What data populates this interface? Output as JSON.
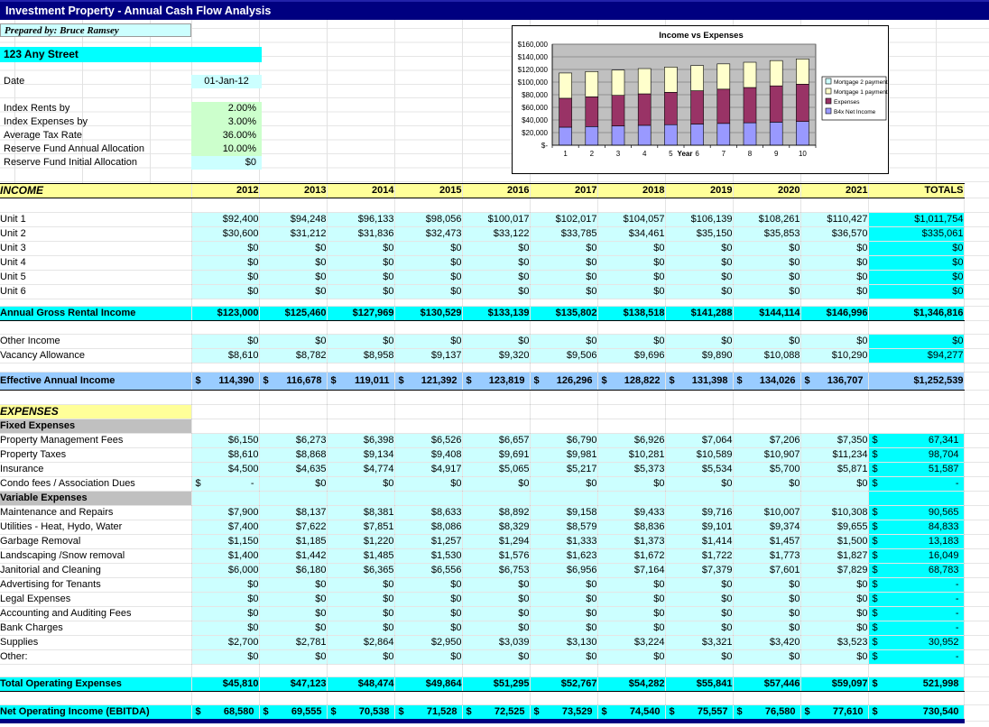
{
  "title": "Investment Property - Annual Cash Flow Analysis",
  "header": {
    "prepared_by": "Prepared by: Bruce Ramsey",
    "address": "123 Any Street",
    "fields": [
      {
        "label": "Date",
        "value": "01-Jan-12",
        "style": "cyan center"
      },
      {
        "label": "Index Rents by",
        "value": "2.00%",
        "style": "green"
      },
      {
        "label": "Index Expenses by",
        "value": "3.00%",
        "style": "green"
      },
      {
        "label": "Average Tax Rate",
        "value": "36.00%",
        "style": "green"
      },
      {
        "label": "Reserve Fund Annual Allocation",
        "value": "10.00%",
        "style": "green"
      },
      {
        "label": "Reserve Fund Initial Allocation",
        "value": "$0",
        "style": "cyan"
      }
    ]
  },
  "chart_data": {
    "type": "bar",
    "stacked": true,
    "title": "Income vs Expenses",
    "x": [
      1,
      2,
      3,
      4,
      5,
      6,
      7,
      8,
      9,
      10
    ],
    "xlabel": "Year",
    "ylim": [
      0,
      160000
    ],
    "ytick_step": 20000,
    "ytick_labels": [
      "$-",
      "$20,000",
      "$40,000",
      "$60,000",
      "$80,000",
      "$100,000",
      "$120,000",
      "$140,000",
      "$160,000"
    ],
    "plot_bg": "#C0C0C0",
    "legend_position": "right",
    "series": [
      {
        "name": "B4x Net Income",
        "color": "#9999FF",
        "values": [
          28580,
          29555,
          30538,
          31528,
          32525,
          33529,
          34540,
          35557,
          36580,
          37610
        ]
      },
      {
        "name": "Expenses",
        "color": "#993366",
        "values": [
          45810,
          47123,
          48474,
          49864,
          51295,
          52767,
          54282,
          55841,
          57446,
          59097
        ]
      },
      {
        "name": "Mortgage 1 payments",
        "color": "#FFFFCC",
        "values": [
          40000,
          40000,
          40000,
          40000,
          40000,
          40000,
          40000,
          40000,
          40000,
          40000
        ]
      },
      {
        "name": "Mortgage 2 payments",
        "color": "#CCFFFF",
        "values": [
          0,
          0,
          0,
          0,
          0,
          0,
          0,
          0,
          0,
          0
        ]
      }
    ]
  },
  "table": {
    "income_label": "INCOME",
    "totals_label": "TOTALS",
    "years": [
      "2012",
      "2013",
      "2014",
      "2015",
      "2016",
      "2017",
      "2018",
      "2019",
      "2020",
      "2021"
    ],
    "rows": [
      {
        "t": "yh"
      },
      {
        "t": "sp",
        "s": 1
      },
      {
        "t": "d",
        "label": "Unit 1",
        "values": [
          "$92,400",
          "$94,248",
          "$96,133",
          "$98,056",
          "$100,017",
          "$102,017",
          "$104,057",
          "$106,139",
          "$108,261",
          "$110,427"
        ],
        "total": "$1,011,754"
      },
      {
        "t": "d",
        "label": "Unit 2",
        "values": [
          "$30,600",
          "$31,212",
          "$31,836",
          "$32,473",
          "$33,122",
          "$33,785",
          "$34,461",
          "$35,150",
          "$35,853",
          "$36,570"
        ],
        "total": "$335,061"
      },
      {
        "t": "d",
        "label": "Unit 3",
        "values": [
          "$0",
          "$0",
          "$0",
          "$0",
          "$0",
          "$0",
          "$0",
          "$0",
          "$0",
          "$0"
        ],
        "total": "$0"
      },
      {
        "t": "d",
        "label": "Unit 4",
        "values": [
          "$0",
          "$0",
          "$0",
          "$0",
          "$0",
          "$0",
          "$0",
          "$0",
          "$0",
          "$0"
        ],
        "total": "$0"
      },
      {
        "t": "d",
        "label": "Unit 5",
        "values": [
          "$0",
          "$0",
          "$0",
          "$0",
          "$0",
          "$0",
          "$0",
          "$0",
          "$0",
          "$0"
        ],
        "total": "$0"
      },
      {
        "t": "d",
        "label": "Unit 6",
        "values": [
          "$0",
          "$0",
          "$0",
          "$0",
          "$0",
          "$0",
          "$0",
          "$0",
          "$0",
          "$0"
        ],
        "total": "$0"
      },
      {
        "t": "sp",
        "s": 2
      },
      {
        "t": "cy",
        "label": "Annual Gross Rental Income",
        "values": [
          "$123,000",
          "$125,460",
          "$127,969",
          "$130,529",
          "$133,139",
          "$135,802",
          "$138,518",
          "$141,288",
          "$144,114",
          "$146,996"
        ],
        "total": "$1,346,816"
      },
      {
        "t": "sp",
        "s": 5
      },
      {
        "t": "d",
        "label": "Other Income",
        "values": [
          "$0",
          "$0",
          "$0",
          "$0",
          "$0",
          "$0",
          "$0",
          "$0",
          "$0",
          "$0"
        ],
        "total": "$0"
      },
      {
        "t": "d",
        "label": "Vacancy Allowance",
        "values": [
          "$8,610",
          "$8,782",
          "$8,958",
          "$9,137",
          "$9,320",
          "$9,506",
          "$9,696",
          "$9,890",
          "$10,088",
          "$10,290"
        ],
        "total": "$94,277"
      },
      {
        "t": "sp",
        "s": 3
      },
      {
        "t": "bl",
        "label": "Effective Annual Income",
        "values": [
          "114,390",
          "116,678",
          "119,011",
          "121,392",
          "123,819",
          "126,296",
          "128,822",
          "131,398",
          "134,026",
          "136,707"
        ],
        "total": "$1,252,539"
      },
      {
        "t": "sp",
        "s": 1
      },
      {
        "t": "sec",
        "label": "EXPENSES"
      },
      {
        "t": "sub",
        "label": "Fixed Expenses",
        "fill": false
      },
      {
        "t": "d",
        "label": "Property Management Fees",
        "values": [
          "$6,150",
          "$6,273",
          "$6,398",
          "$6,526",
          "$6,657",
          "$6,790",
          "$6,926",
          "$7,064",
          "$7,206",
          "$7,350"
        ],
        "total": {
          "d": "$",
          "v": "67,341"
        }
      },
      {
        "t": "d",
        "label": "Property Taxes",
        "values": [
          "$8,610",
          "$8,868",
          "$9,134",
          "$9,408",
          "$9,691",
          "$9,981",
          "$10,281",
          "$10,589",
          "$10,907",
          "$11,234"
        ],
        "total": {
          "d": "$",
          "v": "98,704"
        }
      },
      {
        "t": "d",
        "label": "Insurance",
        "values": [
          "$4,500",
          "$4,635",
          "$4,774",
          "$4,917",
          "$5,065",
          "$5,217",
          "$5,373",
          "$5,534",
          "$5,700",
          "$5,871"
        ],
        "total": {
          "d": "$",
          "v": "51,587"
        }
      },
      {
        "t": "d",
        "label": "Condo fees / Association Dues",
        "values": [
          {
            "d": "$",
            "v": "-"
          },
          "$0",
          "$0",
          "$0",
          "$0",
          "$0",
          "$0",
          "$0",
          "$0",
          "$0"
        ],
        "total": {
          "d": "$",
          "v": "-"
        }
      },
      {
        "t": "sub",
        "label": "Variable Expenses",
        "fill": true
      },
      {
        "t": "d",
        "label": "Maintenance and Repairs",
        "values": [
          "$7,900",
          "$8,137",
          "$8,381",
          "$8,633",
          "$8,892",
          "$9,158",
          "$9,433",
          "$9,716",
          "$10,007",
          "$10,308"
        ],
        "total": {
          "d": "$",
          "v": "90,565"
        }
      },
      {
        "t": "d",
        "label": "Utilities - Heat, Hydo, Water",
        "values": [
          "$7,400",
          "$7,622",
          "$7,851",
          "$8,086",
          "$8,329",
          "$8,579",
          "$8,836",
          "$9,101",
          "$9,374",
          "$9,655"
        ],
        "total": {
          "d": "$",
          "v": "84,833"
        }
      },
      {
        "t": "d",
        "label": "Garbage Removal",
        "values": [
          "$1,150",
          "$1,185",
          "$1,220",
          "$1,257",
          "$1,294",
          "$1,333",
          "$1,373",
          "$1,414",
          "$1,457",
          "$1,500"
        ],
        "total": {
          "d": "$",
          "v": "13,183"
        }
      },
      {
        "t": "d",
        "label": "Landscaping /Snow removal",
        "values": [
          "$1,400",
          "$1,442",
          "$1,485",
          "$1,530",
          "$1,576",
          "$1,623",
          "$1,672",
          "$1,722",
          "$1,773",
          "$1,827"
        ],
        "total": {
          "d": "$",
          "v": "16,049"
        }
      },
      {
        "t": "d",
        "label": "Janitorial and Cleaning",
        "values": [
          "$6,000",
          "$6,180",
          "$6,365",
          "$6,556",
          "$6,753",
          "$6,956",
          "$7,164",
          "$7,379",
          "$7,601",
          "$7,829"
        ],
        "total": {
          "d": "$",
          "v": "68,783"
        }
      },
      {
        "t": "d",
        "label": "Advertising for Tenants",
        "values": [
          "$0",
          "$0",
          "$0",
          "$0",
          "$0",
          "$0",
          "$0",
          "$0",
          "$0",
          "$0"
        ],
        "total": {
          "d": "$",
          "v": "-"
        }
      },
      {
        "t": "d",
        "label": "Legal Expenses",
        "values": [
          "$0",
          "$0",
          "$0",
          "$0",
          "$0",
          "$0",
          "$0",
          "$0",
          "$0",
          "$0"
        ],
        "total": {
          "d": "$",
          "v": "-"
        }
      },
      {
        "t": "d",
        "label": "Accounting and Auditing Fees",
        "values": [
          "$0",
          "$0",
          "$0",
          "$0",
          "$0",
          "$0",
          "$0",
          "$0",
          "$0",
          "$0"
        ],
        "total": {
          "d": "$",
          "v": "-"
        }
      },
      {
        "t": "d",
        "label": "Bank Charges",
        "values": [
          "$0",
          "$0",
          "$0",
          "$0",
          "$0",
          "$0",
          "$0",
          "$0",
          "$0",
          "$0"
        ],
        "total": {
          "d": "$",
          "v": "-"
        }
      },
      {
        "t": "d",
        "label": "Supplies",
        "values": [
          "$2,700",
          "$2,781",
          "$2,864",
          "$2,950",
          "$3,039",
          "$3,130",
          "$3,224",
          "$3,321",
          "$3,420",
          "$3,523"
        ],
        "total": {
          "d": "$",
          "v": "30,952"
        }
      },
      {
        "t": "d",
        "label": "Other:",
        "values": [
          "$0",
          "$0",
          "$0",
          "$0",
          "$0",
          "$0",
          "$0",
          "$0",
          "$0",
          "$0"
        ],
        "total": {
          "d": "$",
          "v": "-"
        }
      },
      {
        "t": "sp",
        "s": 4
      },
      {
        "t": "cy",
        "label": "Total Operating Expenses",
        "values": [
          "$45,810",
          "$47,123",
          "$48,474",
          "$49,864",
          "$51,295",
          "$52,767",
          "$54,282",
          "$55,841",
          "$57,446",
          "$59,097"
        ],
        "total": {
          "d": "$",
          "v": "521,998"
        }
      },
      {
        "t": "sp",
        "s": 5
      },
      {
        "t": "noi",
        "label": "Net Operating Income (EBITDA)",
        "values": [
          "68,580",
          "69,555",
          "70,538",
          "71,528",
          "72,525",
          "73,529",
          "74,540",
          "75,557",
          "76,580",
          "77,610"
        ],
        "total": {
          "d": "$",
          "v": "730,540"
        }
      }
    ]
  }
}
